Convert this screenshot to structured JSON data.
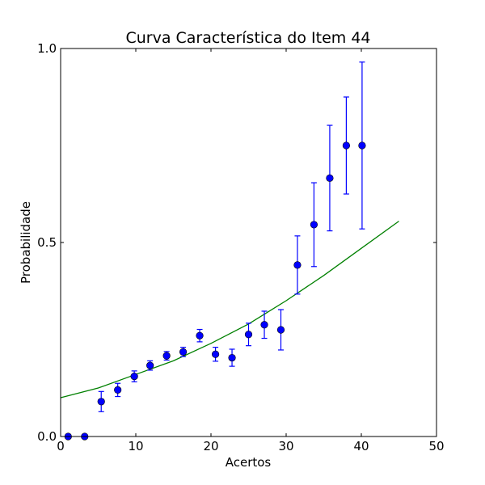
{
  "chart_data": {
    "type": "scatter",
    "title": "Curva Característica do Item 44",
    "xlabel": "Acertos",
    "ylabel": "Probabilidade",
    "xlim": [
      0,
      50
    ],
    "ylim": [
      0,
      1
    ],
    "x_ticks": [
      0,
      10,
      20,
      30,
      40,
      50
    ],
    "x_tick_labels": [
      "0",
      "10",
      "20",
      "30",
      "40",
      "50"
    ],
    "y_ticks": [
      0,
      0.5,
      1
    ],
    "y_tick_labels": [
      "0.0",
      "0.5",
      "1.0"
    ],
    "grid": false,
    "series": [
      {
        "kind": "points_with_error_bars",
        "color": "#0000ff",
        "points": [
          {
            "x": 1.0,
            "y": 0.0,
            "err": 0.0
          },
          {
            "x": 3.2,
            "y": 0.0,
            "err": 0.0
          },
          {
            "x": 5.4,
            "y": 0.09,
            "err": 0.026
          },
          {
            "x": 7.6,
            "y": 0.12,
            "err": 0.017
          },
          {
            "x": 9.8,
            "y": 0.155,
            "err": 0.014
          },
          {
            "x": 11.9,
            "y": 0.183,
            "err": 0.012
          },
          {
            "x": 14.1,
            "y": 0.208,
            "err": 0.011
          },
          {
            "x": 16.3,
            "y": 0.218,
            "err": 0.012
          },
          {
            "x": 18.5,
            "y": 0.26,
            "err": 0.016
          },
          {
            "x": 20.6,
            "y": 0.212,
            "err": 0.018
          },
          {
            "x": 22.8,
            "y": 0.203,
            "err": 0.022
          },
          {
            "x": 25.0,
            "y": 0.263,
            "err": 0.029
          },
          {
            "x": 27.1,
            "y": 0.288,
            "err": 0.035
          },
          {
            "x": 29.3,
            "y": 0.275,
            "err": 0.052
          },
          {
            "x": 31.5,
            "y": 0.442,
            "err": 0.075
          },
          {
            "x": 33.7,
            "y": 0.546,
            "err": 0.108
          },
          {
            "x": 35.8,
            "y": 0.666,
            "err": 0.136
          },
          {
            "x": 38.0,
            "y": 0.75,
            "err": 0.125
          },
          {
            "x": 40.1,
            "y": 0.75,
            "err": 0.215
          }
        ]
      },
      {
        "kind": "line",
        "color": "#008000",
        "x": [
          0,
          5,
          10,
          15,
          20,
          25,
          30,
          35,
          40,
          45
        ],
        "y": [
          0.1,
          0.125,
          0.16,
          0.195,
          0.24,
          0.29,
          0.35,
          0.415,
          0.485,
          0.555
        ]
      }
    ]
  }
}
